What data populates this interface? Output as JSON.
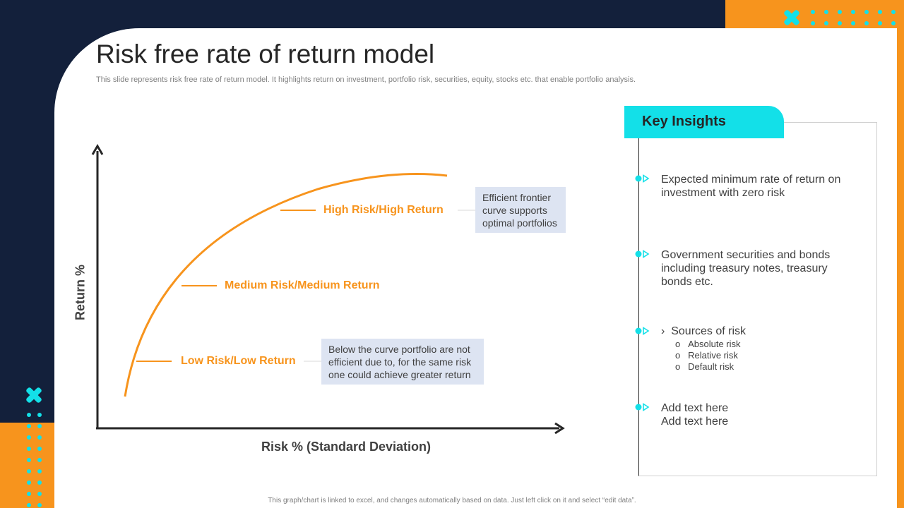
{
  "slide": {
    "title": "Risk free rate of return model",
    "subtitle": "This slide represents risk free rate of return model. It highlights return on investment, portfolio risk, securities, equity, stocks etc. that enable portfolio analysis.",
    "footnote": "This graph/chart is linked to excel, and changes automatically based on data. Just left click on it and select “edit data”."
  },
  "diagram": {
    "x_axis_label": "Risk % (Standard Deviation)",
    "y_axis_label": "Return %",
    "levels": {
      "high": "High Risk/High Return",
      "medium": "Medium Risk/Medium Return",
      "low": "Low Risk/Low Return"
    },
    "callouts": {
      "frontier": "Efficient frontier curve supports optimal portfolios",
      "below": "Below the curve portfolio are not efficient due to, for the same risk one could achieve greater return"
    },
    "colors": {
      "curve": "#f7941d",
      "axis": "#262626",
      "callout_bg": "#dde4f2"
    }
  },
  "insights": {
    "heading": "Key Insights",
    "items": [
      {
        "text": "Expected minimum rate of return on investment with zero risk"
      },
      {
        "text": "Government securities and bonds including treasury notes, treasury bonds etc."
      },
      {
        "text": "Sources of risk"
      },
      {
        "text": "Add text here\nAdd text here"
      }
    ],
    "sub_prefix": "›",
    "risk_sources": [
      "Absolute risk",
      "Relative risk",
      "Default risk"
    ],
    "sub_bullet": "o",
    "colors": {
      "accent": "#13e0e8"
    }
  },
  "theme": {
    "navy": "#13203b",
    "orange": "#f7941d",
    "cyan": "#13e0e8"
  }
}
